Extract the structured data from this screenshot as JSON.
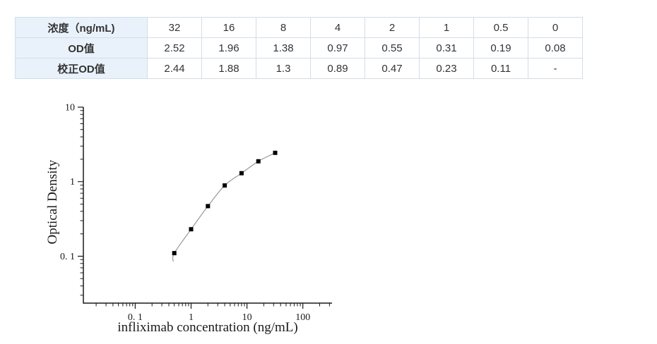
{
  "table": {
    "rows": [
      {
        "header": "浓度（ng/mL)",
        "values": [
          "32",
          "16",
          "8",
          "4",
          "2",
          "1",
          "0.5",
          "0"
        ]
      },
      {
        "header": "OD值",
        "values": [
          "2.52",
          "1.96",
          "1.38",
          "0.97",
          "0.55",
          "0.31",
          "0.19",
          "0.08"
        ]
      },
      {
        "header": "校正OD值",
        "values": [
          "2.44",
          "1.88",
          "1.3",
          "0.89",
          "0.47",
          "0.23",
          "0.11",
          "-"
        ]
      }
    ],
    "header_bg": "#e9f2fb",
    "border_color": "#d3dde6",
    "text_color": "#333333"
  },
  "chart_data": {
    "type": "scatter",
    "x": [
      0.5,
      1,
      2,
      4,
      8,
      16,
      32
    ],
    "y": [
      0.11,
      0.23,
      0.47,
      0.89,
      1.3,
      1.88,
      2.44
    ],
    "xlabel": "infliximab concentration (ng/mL)",
    "ylabel": "Optical Density",
    "xscale": "log",
    "yscale": "log",
    "xlim": [
      0.0118,
      333
    ],
    "ylim": [
      0.0235,
      10
    ],
    "xtick_values": [
      0.1,
      1,
      10,
      100
    ],
    "xtick_labels": [
      "0. 1",
      "1",
      "10",
      "100"
    ],
    "ytick_values": [
      10,
      1,
      0.1
    ],
    "ytick_labels": [
      "10",
      "1",
      "0. 1"
    ],
    "grid": false,
    "curve_tail": {
      "x": 0.48,
      "y": 0.085
    },
    "marker": "square",
    "marker_color": "#000000",
    "line_color": "#999999",
    "axis_color": "#1a1a1a"
  }
}
